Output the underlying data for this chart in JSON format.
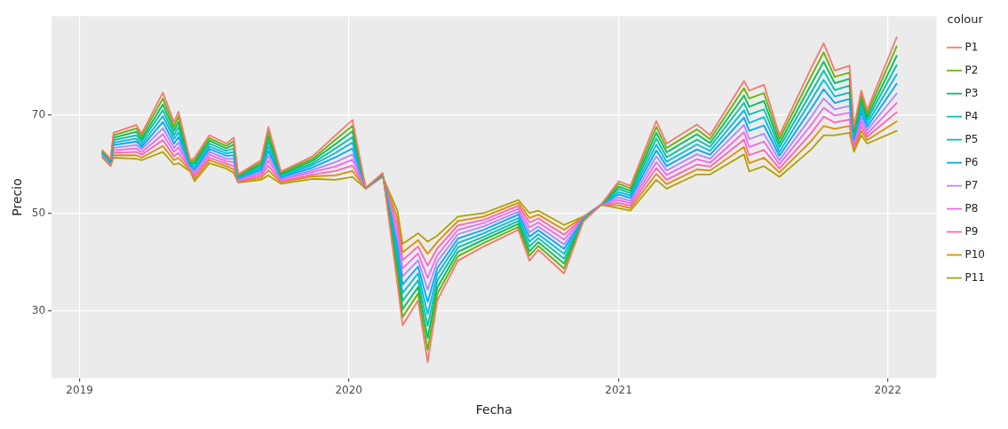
{
  "chart_data": {
    "type": "line",
    "xlabel": "Fecha",
    "ylabel": "Precio",
    "legend_title": "colour",
    "legend": "top right",
    "grid": true,
    "marker": "none",
    "line_style": "solid",
    "xlim": [
      "2018-11-24",
      "2022-03-08"
    ],
    "xticks": [
      {
        "value": "2019-01-01",
        "label": "2019"
      },
      {
        "value": "2020-01-01",
        "label": "2020"
      },
      {
        "value": "2021-01-01",
        "label": "2021"
      },
      {
        "value": "2022-01-01",
        "label": "2022"
      }
    ],
    "ylim": [
      16.3,
      90.2
    ],
    "yticks": [
      30,
      50,
      70
    ],
    "x": [
      "2019-02-01",
      "2019-02-12",
      "2019-02-16",
      "2019-03-19",
      "2019-03-26",
      "2019-04-24",
      "2019-05-09",
      "2019-05-15",
      "2019-05-31",
      "2019-06-06",
      "2019-06-26",
      "2019-07-19",
      "2019-07-29",
      "2019-08-04",
      "2019-09-04",
      "2019-09-14",
      "2019-10-01",
      "2019-11-13",
      "2019-12-14",
      "2020-01-06",
      "2020-01-24",
      "2020-02-16",
      "2020-03-07",
      "2020-03-14",
      "2020-04-04",
      "2020-04-17",
      "2020-04-30",
      "2020-05-28",
      "2020-07-02",
      "2020-08-18",
      "2020-09-02",
      "2020-09-14",
      "2020-10-19",
      "2020-11-14",
      "2020-12-08",
      "2021-01-01",
      "2021-01-17",
      "2021-02-21",
      "2021-03-07",
      "2021-04-17",
      "2021-05-05",
      "2021-06-20",
      "2021-06-27",
      "2021-07-17",
      "2021-08-07",
      "2021-09-19",
      "2021-10-06",
      "2021-10-21",
      "2021-11-10",
      "2021-11-16",
      "2021-11-26",
      "2021-12-04",
      "2022-01-13"
    ],
    "series": [
      {
        "name": "P1",
        "color": "#f8766d",
        "values": [
          62.8,
          61.1,
          66.4,
          68.0,
          66.2,
          74.6,
          68.5,
          70.7,
          60.8,
          61.3,
          65.9,
          64.2,
          65.4,
          57.9,
          60.8,
          67.6,
          58.5,
          61.6,
          65.9,
          69.0,
          55.1,
          58.2,
          35.6,
          27.1,
          32.2,
          19.6,
          32.2,
          40.3,
          43.2,
          46.6,
          40.3,
          42.5,
          37.7,
          48.3,
          51.7,
          56.5,
          55.6,
          68.8,
          64.2,
          68.1,
          65.9,
          77.0,
          75.0,
          76.2,
          65.9,
          79.6,
          84.7,
          79.1,
          80.1,
          67.6,
          75.0,
          71.0,
          85.9
        ]
      },
      {
        "name": "P2",
        "color": "#64b200",
        "values": [
          62.7,
          61.0,
          65.9,
          67.3,
          65.7,
          73.4,
          67.6,
          69.7,
          60.6,
          60.8,
          65.3,
          63.7,
          64.7,
          57.7,
          60.4,
          66.6,
          58.3,
          61.1,
          65.0,
          67.8,
          55.1,
          58.1,
          37.1,
          28.8,
          33.6,
          22.1,
          33.5,
          41.2,
          43.9,
          47.2,
          41.3,
          43.3,
          38.7,
          48.4,
          51.7,
          56.0,
          55.1,
          67.6,
          63.3,
          67.1,
          65.1,
          75.5,
          73.4,
          74.5,
          65.1,
          77.9,
          82.8,
          77.8,
          78.7,
          67.1,
          74.1,
          70.3,
          84.0
        ]
      },
      {
        "name": "P3",
        "color": "#00bd5c",
        "values": [
          62.5,
          60.8,
          65.4,
          66.6,
          65.1,
          72.2,
          66.8,
          68.6,
          60.3,
          60.3,
          64.8,
          63.2,
          64.0,
          57.6,
          60.0,
          65.6,
          58.0,
          60.7,
          64.1,
          66.7,
          55.1,
          58.0,
          38.6,
          30.4,
          34.9,
          24.5,
          34.8,
          42.1,
          44.6,
          47.8,
          42.2,
          44.1,
          39.7,
          48.5,
          51.7,
          55.4,
          54.6,
          66.4,
          62.4,
          66.1,
          64.3,
          74.0,
          71.7,
          72.9,
          64.2,
          76.3,
          80.9,
          76.5,
          77.4,
          66.6,
          73.2,
          69.6,
          82.1
        ]
      },
      {
        "name": "P4",
        "color": "#00c1a7",
        "values": [
          62.4,
          60.7,
          64.9,
          65.9,
          64.6,
          71.0,
          65.9,
          67.6,
          60.1,
          59.9,
          64.2,
          62.7,
          63.2,
          57.4,
          59.6,
          64.6,
          57.8,
          60.2,
          63.2,
          65.5,
          55.1,
          58.0,
          40.1,
          32.1,
          36.3,
          27.0,
          36.2,
          43.0,
          45.2,
          48.4,
          43.2,
          44.9,
          40.7,
          48.6,
          51.7,
          54.9,
          54.1,
          65.2,
          61.4,
          65.0,
          63.5,
          72.5,
          70.1,
          71.2,
          63.4,
          74.6,
          79.1,
          75.1,
          76.0,
          66.1,
          72.3,
          69.0,
          80.2
        ]
      },
      {
        "name": "P5",
        "color": "#00bade",
        "values": [
          62.2,
          60.5,
          64.4,
          65.2,
          64.0,
          69.8,
          65.1,
          66.5,
          59.9,
          59.4,
          63.6,
          62.2,
          62.5,
          57.2,
          59.2,
          63.6,
          57.5,
          59.8,
          62.3,
          64.4,
          55.1,
          57.9,
          41.6,
          33.7,
          37.7,
          29.4,
          37.5,
          43.9,
          45.9,
          49.0,
          44.2,
          45.7,
          41.7,
          48.7,
          51.7,
          54.3,
          53.6,
          64.0,
          60.5,
          64.0,
          62.7,
          71.0,
          68.4,
          69.6,
          62.5,
          73.0,
          77.2,
          73.8,
          74.6,
          65.6,
          71.4,
          68.3,
          78.3
        ]
      },
      {
        "name": "P6",
        "color": "#00a6ff",
        "values": [
          62.1,
          60.4,
          63.9,
          64.6,
          63.5,
          68.6,
          64.2,
          65.5,
          59.7,
          58.9,
          63.1,
          61.7,
          61.8,
          57.1,
          58.8,
          62.7,
          57.3,
          59.3,
          61.4,
          63.2,
          55.1,
          57.8,
          43.1,
          35.4,
          39.1,
          31.9,
          38.8,
          44.8,
          46.6,
          49.7,
          45.2,
          46.5,
          42.7,
          48.8,
          51.7,
          53.8,
          53.1,
          62.8,
          59.6,
          63.0,
          61.9,
          69.5,
          66.8,
          67.9,
          61.7,
          71.3,
          75.3,
          72.5,
          73.3,
          65.1,
          70.5,
          67.6,
          76.4
        ]
      },
      {
        "name": "P7",
        "color": "#b385ff",
        "values": [
          61.9,
          60.2,
          63.3,
          63.9,
          63.0,
          67.3,
          63.3,
          64.4,
          59.4,
          58.4,
          62.5,
          61.1,
          61.1,
          56.9,
          58.4,
          61.7,
          57.0,
          58.8,
          60.4,
          62.0,
          55.0,
          57.7,
          44.5,
          37.1,
          40.4,
          34.4,
          40.1,
          45.7,
          47.3,
          50.3,
          46.1,
          47.3,
          43.6,
          48.9,
          51.7,
          53.2,
          52.5,
          61.6,
          58.7,
          62.0,
          61.1,
          68.0,
          65.1,
          66.2,
          60.8,
          69.6,
          73.4,
          71.2,
          71.9,
          64.5,
          69.5,
          66.9,
          74.4
        ]
      },
      {
        "name": "P8",
        "color": "#ef67eb",
        "values": [
          61.8,
          60.1,
          62.8,
          63.2,
          62.4,
          66.1,
          62.5,
          63.4,
          59.2,
          57.9,
          61.9,
          60.6,
          60.4,
          56.7,
          58.0,
          60.7,
          56.8,
          58.4,
          59.5,
          60.9,
          55.0,
          57.6,
          46.0,
          38.7,
          41.8,
          36.8,
          41.4,
          46.6,
          48.0,
          50.9,
          47.1,
          48.1,
          44.6,
          49.0,
          51.7,
          52.7,
          52.0,
          60.4,
          57.8,
          61.0,
          60.3,
          66.5,
          63.5,
          64.6,
          60.0,
          68.0,
          71.5,
          69.9,
          70.5,
          64.0,
          68.6,
          66.2,
          72.5
        ]
      },
      {
        "name": "P9",
        "color": "#ff63b6",
        "values": [
          61.6,
          59.9,
          62.3,
          62.5,
          61.9,
          64.9,
          61.6,
          62.3,
          59.0,
          57.5,
          61.3,
          60.1,
          59.6,
          56.5,
          57.6,
          59.7,
          56.5,
          57.9,
          58.6,
          59.7,
          55.0,
          57.6,
          47.5,
          40.4,
          43.2,
          39.3,
          42.8,
          47.5,
          48.6,
          51.5,
          48.1,
          48.9,
          45.6,
          49.1,
          51.7,
          52.1,
          51.5,
          59.2,
          56.8,
          59.9,
          59.5,
          65.0,
          61.8,
          62.9,
          59.1,
          66.3,
          69.7,
          68.5,
          69.1,
          63.5,
          67.7,
          65.6,
          70.6
        ]
      },
      {
        "name": "P10",
        "color": "#db8e00",
        "values": [
          61.5,
          59.8,
          61.8,
          61.8,
          61.3,
          63.7,
          60.8,
          61.3,
          58.7,
          57.0,
          60.8,
          59.6,
          58.9,
          56.4,
          57.2,
          58.7,
          56.3,
          57.5,
          57.7,
          58.6,
          55.0,
          57.5,
          49.0,
          42.0,
          44.5,
          41.7,
          44.1,
          48.4,
          49.3,
          52.1,
          49.0,
          49.7,
          46.6,
          49.2,
          51.7,
          51.6,
          51.0,
          58.0,
          55.9,
          58.9,
          58.7,
          63.5,
          60.2,
          61.3,
          58.3,
          64.7,
          67.8,
          67.2,
          67.8,
          63.0,
          66.8,
          64.9,
          68.7
        ]
      },
      {
        "name": "P11",
        "color": "#aea200",
        "values": [
          61.3,
          59.6,
          61.3,
          61.1,
          60.8,
          62.5,
          59.9,
          60.2,
          58.5,
          56.5,
          60.2,
          59.1,
          58.2,
          56.2,
          56.8,
          57.7,
          56.0,
          57.0,
          56.8,
          57.4,
          55.0,
          57.4,
          50.5,
          43.7,
          45.9,
          44.2,
          45.4,
          49.3,
          50.0,
          52.7,
          50.0,
          50.5,
          47.6,
          49.3,
          51.7,
          51.0,
          50.5,
          56.8,
          55.0,
          57.9,
          57.9,
          62.0,
          58.5,
          59.6,
          57.4,
          63.0,
          65.9,
          65.9,
          66.4,
          62.5,
          65.9,
          64.2,
          66.8
        ]
      }
    ]
  }
}
